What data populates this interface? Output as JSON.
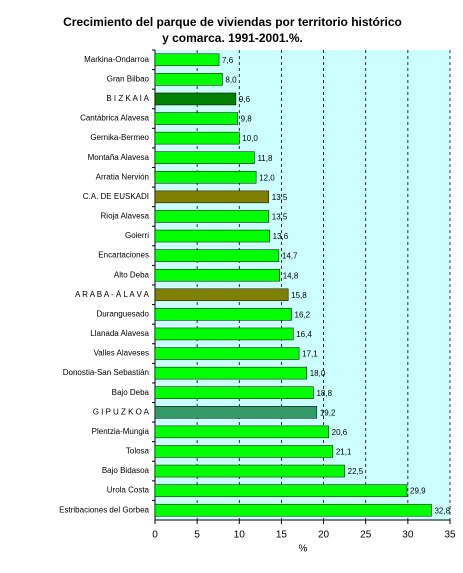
{
  "chart_data": {
    "type": "hbar",
    "title": "Crecimiento del parque de viviendas por territorio histórico y comarca. 1991-2001.%.",
    "x_label": "%",
    "categories": [
      "Markina-Ondarroa",
      "Gran Bilbao",
      "B I Z K A I A",
      "Cantábrica Alavesa",
      "Gernika-Bermeo",
      "Montaña Alavesa",
      "Arratia Nervión",
      "C.A. DE EUSKADI",
      "Rioja Alavesa",
      "Goierri",
      "Encartaciones",
      "Alto Deba",
      "A R A B A - Á L A V A",
      "Duranguesado",
      "Llanada Alavesa",
      "Valles Alaveses",
      "Donostia-San Sebastián",
      "Bajo Deba",
      "G I P U Z K O A",
      "Plentzia-Mungia",
      "Tolosa",
      "Bajo Bidasoa",
      "Urola Costa",
      "Estribaciones del Gorbea"
    ],
    "values": [
      7.6,
      8.0,
      9.6,
      9.8,
      10.0,
      11.8,
      12.0,
      13.5,
      13.5,
      13.6,
      14.7,
      14.8,
      15.8,
      16.2,
      16.4,
      17.1,
      18.0,
      18.8,
      19.2,
      20.6,
      21.1,
      22.5,
      29.9,
      32.8
    ],
    "value_labels": [
      "7,6",
      "8,0",
      "9,6",
      "9,8",
      "10,0",
      "11,8",
      "12,0",
      "13,5",
      "13,5",
      "13,6",
      "14,7",
      "14,8",
      "15,8",
      "16,2",
      "16,4",
      "17,1",
      "18,0",
      "18,8",
      "19,2",
      "20,6",
      "21,1",
      "22,5",
      "29,9",
      "32,8"
    ],
    "colors": [
      "#00ff00",
      "#00ff00",
      "#008000",
      "#00ff00",
      "#00ff00",
      "#00ff00",
      "#00ff00",
      "#808000",
      "#00ff00",
      "#00ff00",
      "#00ff00",
      "#00ff00",
      "#808000",
      "#00ff00",
      "#00ff00",
      "#00ff00",
      "#00ff00",
      "#00ff00",
      "#339966",
      "#00ff00",
      "#00ff00",
      "#00ff00",
      "#00ff00",
      "#00ff00"
    ],
    "xlim": [
      0,
      35
    ],
    "xticks": [
      0,
      5,
      10,
      15,
      20,
      25,
      30,
      35
    ],
    "grid": true,
    "plot_color": "#ccffff"
  }
}
